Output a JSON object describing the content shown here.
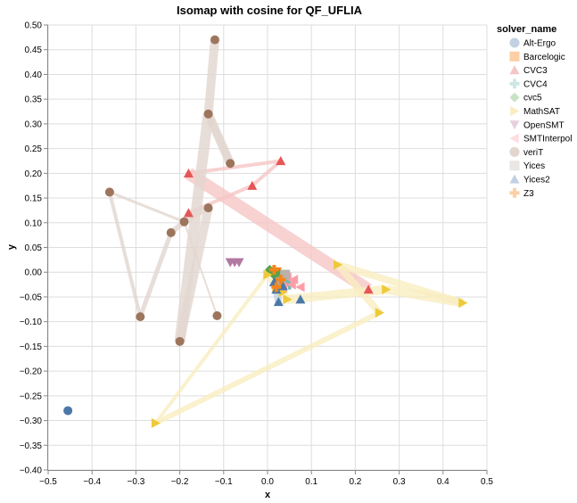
{
  "chart_data": {
    "type": "scatter",
    "title": "Isomap with cosine for QF_UFLIA",
    "xlabel": "x",
    "ylabel": "y",
    "xlim": [
      -0.5,
      0.5
    ],
    "ylim": [
      -0.4,
      0.5
    ],
    "x_ticks": [
      "−0.5",
      "−0.4",
      "−0.3",
      "−0.2",
      "−0.1",
      "0.0",
      "0.1",
      "0.2",
      "0.3",
      "0.4",
      "0.5"
    ],
    "x_tick_values": [
      -0.5,
      -0.4,
      -0.3,
      -0.2,
      -0.1,
      0.0,
      0.1,
      0.2,
      0.3,
      0.4,
      0.5
    ],
    "y_ticks": [
      "0.50",
      "0.45",
      "0.40",
      "0.35",
      "0.30",
      "0.25",
      "0.20",
      "0.15",
      "0.10",
      "0.05",
      "0.00",
      "−0.05",
      "−0.10",
      "−0.15",
      "−0.20",
      "−0.25",
      "−0.30",
      "−0.35",
      "−0.40"
    ],
    "y_tick_values": [
      0.5,
      0.45,
      0.4,
      0.35,
      0.3,
      0.25,
      0.2,
      0.15,
      0.1,
      0.05,
      0.0,
      -0.05,
      -0.1,
      -0.15,
      -0.2,
      -0.25,
      -0.3,
      -0.35,
      -0.4
    ],
    "grid": true,
    "legend": {
      "title": "solver_name",
      "placement": "right",
      "entries": [
        "Alt-Ergo",
        "Barcelogic",
        "CVC3",
        "CVC4",
        "cvc5",
        "MathSAT",
        "OpenSMT",
        "SMTInterpol",
        "veriT",
        "Yices",
        "Yices2",
        "Z3"
      ]
    },
    "series": [
      {
        "name": "Alt-Ergo",
        "shape": "circle",
        "color": "#4c78a8",
        "light": "#c2d1e2",
        "points": [
          [
            -0.455,
            -0.28
          ]
        ]
      },
      {
        "name": "Barcelogic",
        "shape": "square",
        "color": "#f58518",
        "light": "#fccfa4",
        "points": [
          [
            0.02,
            0.0
          ],
          [
            0.025,
            -0.005
          ],
          [
            0.03,
            -0.01
          ]
        ]
      },
      {
        "name": "CVC3",
        "shape": "triangle-up",
        "color": "#e45756",
        "light": "#f6c5c5",
        "points": [
          [
            -0.18,
            0.2
          ],
          [
            0.03,
            0.225
          ],
          [
            -0.035,
            0.175
          ],
          [
            -0.18,
            0.12
          ],
          [
            0.23,
            -0.035
          ]
        ],
        "path_order": [
          3,
          2,
          1,
          0,
          4
        ],
        "path_weights": [
          4,
          4,
          4,
          14
        ]
      },
      {
        "name": "CVC4",
        "shape": "cross",
        "color": "#72b7b2",
        "light": "#cde7e6",
        "points": [
          [
            0.035,
            -0.02
          ],
          [
            0.045,
            -0.015
          ],
          [
            0.05,
            -0.025
          ]
        ]
      },
      {
        "name": "cvc5",
        "shape": "diamond",
        "color": "#54a24b",
        "light": "#c9e2c6",
        "points": [
          [
            0.005,
            0.005
          ],
          [
            0.01,
            0.0
          ],
          [
            0.015,
            -0.005
          ],
          [
            0.02,
            -0.01
          ],
          [
            0.025,
            -0.002
          ]
        ]
      },
      {
        "name": "MathSAT",
        "shape": "triangle-right",
        "color": "#eeca3b",
        "light": "#f9edc0",
        "points": [
          [
            -0.255,
            -0.305
          ],
          [
            0.0,
            -0.005
          ],
          [
            0.045,
            -0.055
          ],
          [
            0.27,
            -0.035
          ],
          [
            0.445,
            -0.062
          ],
          [
            0.16,
            0.015
          ],
          [
            0.255,
            -0.082
          ],
          [
            0.02,
            -0.03
          ],
          [
            0.035,
            -0.04
          ]
        ],
        "path_order": [
          0,
          1,
          2,
          3,
          4,
          5,
          6,
          0
        ],
        "path_weights": [
          4,
          8,
          10,
          10,
          8,
          8,
          6
        ]
      },
      {
        "name": "OpenSMT",
        "shape": "triangle-down",
        "color": "#b279a2",
        "light": "#e6d0e0",
        "points": [
          [
            -0.085,
            0.02
          ],
          [
            -0.075,
            0.02
          ],
          [
            -0.065,
            0.02
          ]
        ]
      },
      {
        "name": "SMTInterpol",
        "shape": "triangle-left",
        "color": "#ff9da6",
        "light": "#ffdde0",
        "points": [
          [
            0.045,
            -0.01
          ],
          [
            0.06,
            -0.015
          ],
          [
            0.075,
            -0.03
          ],
          [
            0.055,
            -0.025
          ],
          [
            0.035,
            -0.03
          ]
        ]
      },
      {
        "name": "veriT",
        "shape": "circle",
        "color": "#9d755d",
        "light": "#e2d6cf",
        "points": [
          [
            -0.12,
            0.47
          ],
          [
            -0.135,
            0.32
          ],
          [
            -0.085,
            0.22
          ],
          [
            -0.36,
            0.162
          ],
          [
            -0.19,
            0.102
          ],
          [
            -0.22,
            0.08
          ],
          [
            -0.135,
            0.13
          ],
          [
            -0.29,
            -0.09
          ],
          [
            -0.2,
            -0.14
          ],
          [
            -0.115,
            -0.088
          ]
        ],
        "path_order": [
          0,
          1,
          2,
          1,
          8,
          6,
          4,
          3,
          7,
          5,
          4,
          9
        ],
        "path_weights": [
          10,
          8,
          10,
          12,
          10,
          6,
          3,
          4,
          5,
          6,
          2
        ]
      },
      {
        "name": "Yices",
        "shape": "square",
        "color": "#bab0ac",
        "light": "#e9e6e4",
        "points": [
          [
            0.03,
            -0.02
          ],
          [
            0.04,
            -0.005
          ]
        ]
      },
      {
        "name": "Yices2",
        "shape": "triangle-up",
        "color": "#4c78a8",
        "light": "#c2d1e2",
        "points": [
          [
            0.015,
            -0.02
          ],
          [
            0.025,
            -0.06
          ],
          [
            0.075,
            -0.055
          ],
          [
            0.02,
            -0.035
          ],
          [
            0.035,
            -0.028
          ]
        ],
        "path_order": [
          3,
          1
        ],
        "path_weights": [
          8
        ]
      },
      {
        "name": "Z3",
        "shape": "cross",
        "color": "#f58518",
        "light": "#fccfa4",
        "points": [
          [
            0.015,
            0.005
          ],
          [
            0.03,
            -0.015
          ],
          [
            0.02,
            -0.03
          ]
        ]
      }
    ]
  }
}
